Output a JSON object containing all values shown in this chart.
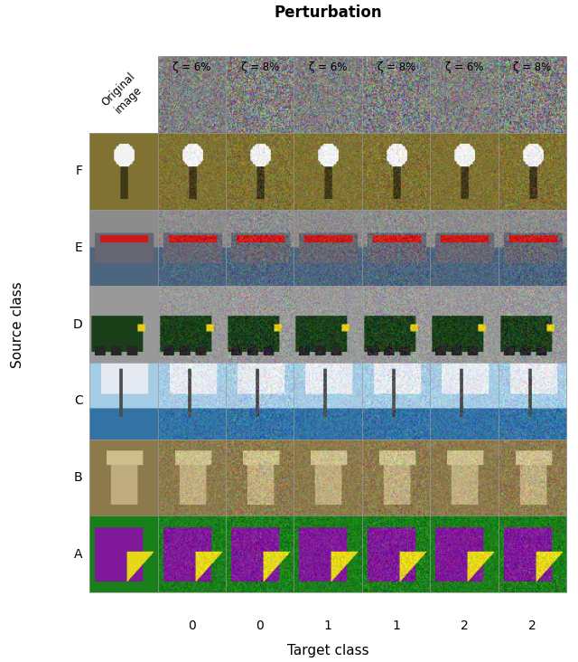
{
  "title": "Perturbation",
  "col_headers": [
    "ζ = 6%",
    "ζ = 8%",
    "ζ = 6%",
    "ζ = 8%",
    "ζ = 6%",
    "ζ = 8%"
  ],
  "row_labels": [
    "F",
    "E",
    "D",
    "C",
    "B",
    "A"
  ],
  "source_class_label": "Source class",
  "target_class_label": "Target class",
  "original_image_label": "Original\nimage",
  "target_class_ticks": [
    "0",
    "0",
    "1",
    "1",
    "2",
    "2"
  ],
  "grid_color": "#cccccc",
  "background_color": "#ffffff",
  "header_fontsize": 11,
  "label_fontsize": 11,
  "tick_fontsize": 10,
  "n_rows": 7,
  "n_cols": 7
}
